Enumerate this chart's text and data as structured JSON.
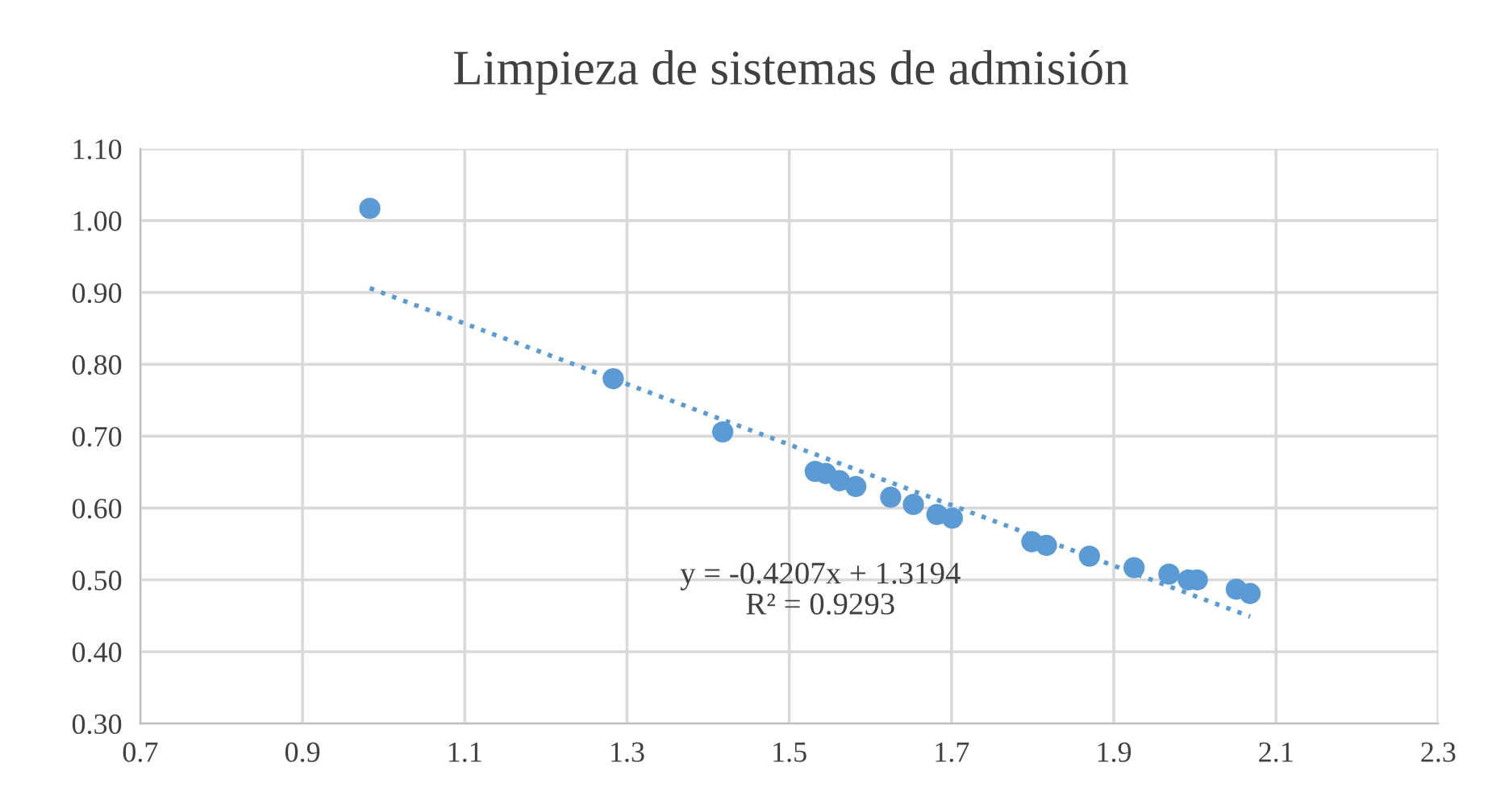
{
  "chart_data": {
    "type": "scatter",
    "title": "Limpieza de sistemas de admisión",
    "series": [
      {
        "color": "#5b9bd5",
        "marker": "circle",
        "x": [
          0.983,
          1.283,
          1.418,
          1.532,
          1.545,
          1.562,
          1.582,
          1.625,
          1.653,
          1.682,
          1.701,
          1.799,
          1.817,
          1.87,
          1.925,
          1.968,
          1.992,
          2.003,
          2.051,
          2.068
        ],
        "values": [
          1.017,
          0.78,
          0.706,
          0.651,
          0.648,
          0.638,
          0.63,
          0.615,
          0.605,
          0.591,
          0.586,
          0.553,
          0.548,
          0.533,
          0.517,
          0.508,
          0.5,
          0.5,
          0.487,
          0.481
        ]
      },
      {
        "type": "line",
        "color": "#5b9bd5",
        "line_style": "dotted",
        "marker": "none",
        "x": [
          0.983,
          2.068
        ],
        "values": [
          0.906,
          0.449
        ]
      }
    ],
    "annotations": [
      "y = -0.4207x + 1.3194\nR² = 0.9293"
    ],
    "xlim": [
      0.7,
      2.3
    ],
    "xticks": [
      {
        "value": 0.7,
        "label": "0.7"
      },
      {
        "value": 0.9,
        "label": "0.9"
      },
      {
        "value": 1.1,
        "label": "1.1"
      },
      {
        "value": 1.3,
        "label": "1.3"
      },
      {
        "value": 1.5,
        "label": "1.5"
      },
      {
        "value": 1.7,
        "label": "1.7"
      },
      {
        "value": 1.9,
        "label": "1.9"
      },
      {
        "value": 2.1,
        "label": "2.1"
      },
      {
        "value": 2.3,
        "label": "2.3"
      }
    ],
    "ylim": [
      0.3,
      1.1
    ],
    "yticks": [
      {
        "value": 0.3,
        "label": "0.30"
      },
      {
        "value": 0.4,
        "label": "0.40"
      },
      {
        "value": 0.5,
        "label": "0.50"
      },
      {
        "value": 0.6,
        "label": "0.60"
      },
      {
        "value": 0.7,
        "label": "0.70"
      },
      {
        "value": 0.8,
        "label": "0.80"
      },
      {
        "value": 0.9,
        "label": "0.90"
      },
      {
        "value": 1.0,
        "label": "1.00"
      },
      {
        "value": 1.1,
        "label": "1.10"
      }
    ],
    "grid": true,
    "legend": false
  }
}
